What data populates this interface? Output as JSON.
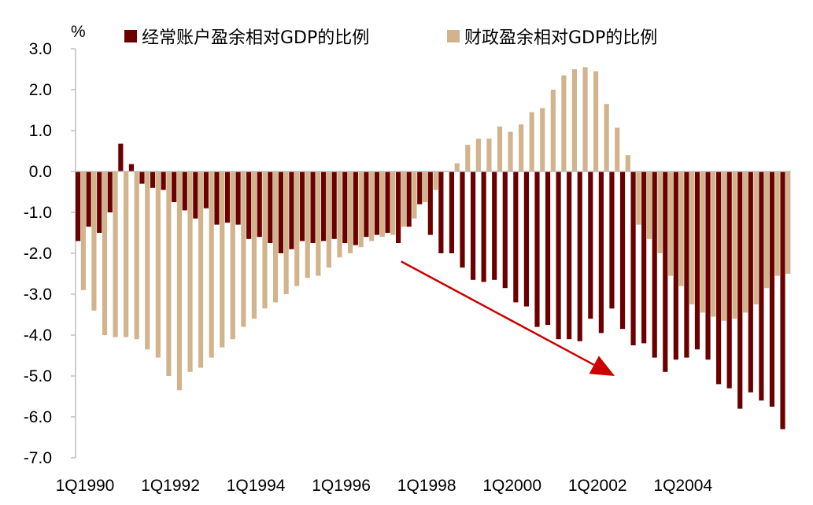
{
  "chart_data": {
    "type": "bar",
    "unit_label": "%",
    "series": [
      {
        "name": "经常账户盈余相对GDP的比例",
        "color": "#6B0000",
        "values": [
          -1.7,
          -1.35,
          -1.5,
          -1.0,
          0.68,
          0.18,
          -0.3,
          -0.4,
          -0.45,
          -0.75,
          -0.95,
          -1.15,
          -0.9,
          -1.3,
          -1.25,
          -1.3,
          -1.65,
          -1.6,
          -1.75,
          -2.0,
          -1.9,
          -1.7,
          -1.75,
          -1.7,
          -1.65,
          -1.75,
          -1.8,
          -1.6,
          -1.55,
          -1.5,
          -1.75,
          -1.35,
          -0.8,
          -1.55,
          -2.0,
          -2.0,
          -2.35,
          -2.65,
          -2.7,
          -2.65,
          -2.85,
          -3.2,
          -3.3,
          -3.8,
          -3.75,
          -4.1,
          -4.1,
          -4.15,
          -3.6,
          -3.95,
          -3.35,
          -3.85,
          -4.25,
          -4.2,
          -4.55,
          -4.9,
          -4.6,
          -4.55,
          -4.35,
          -4.6,
          -5.2,
          -5.3,
          -5.8,
          -5.4,
          -5.6,
          -5.75,
          -6.3
        ]
      },
      {
        "name": "财政盈余相对GDP的比例",
        "color": "#D2B48C",
        "values": [
          -2.9,
          -3.4,
          -4.0,
          -4.05,
          -4.05,
          -4.1,
          -4.35,
          -4.55,
          -5.0,
          -5.35,
          -4.9,
          -4.8,
          -4.55,
          -4.3,
          -4.1,
          -3.8,
          -3.6,
          -3.35,
          -3.2,
          -3.0,
          -2.8,
          -2.6,
          -2.55,
          -2.35,
          -2.1,
          -2.0,
          -1.85,
          -1.7,
          -1.6,
          -1.55,
          -1.35,
          -1.15,
          -0.75,
          -0.45,
          0.0,
          0.2,
          0.65,
          0.8,
          0.8,
          1.1,
          0.97,
          1.15,
          1.45,
          1.55,
          2.0,
          2.35,
          2.5,
          2.55,
          2.45,
          1.65,
          1.07,
          0.4,
          -1.3,
          -1.65,
          -2.0,
          -2.55,
          -2.8,
          -3.25,
          -3.45,
          -3.55,
          -3.65,
          -3.6,
          -3.45,
          -3.25,
          -2.85,
          -2.55,
          -2.5
        ]
      }
    ],
    "ylim": [
      -7.0,
      3.0
    ],
    "y_ticks": [
      "3.0",
      "2.0",
      "1.0",
      "0.0",
      "-1.0",
      "-2.0",
      "-3.0",
      "-4.0",
      "-5.0",
      "-6.0",
      "-7.0"
    ],
    "x_ticks": [
      {
        "index": 0,
        "label": "1Q1990"
      },
      {
        "index": 8,
        "label": "1Q1992"
      },
      {
        "index": 16,
        "label": "1Q1994"
      },
      {
        "index": 24,
        "label": "1Q1996"
      },
      {
        "index": 32,
        "label": "1Q1998"
      },
      {
        "index": 40,
        "label": "1Q2000"
      },
      {
        "index": 48,
        "label": "1Q2002"
      },
      {
        "index": 56,
        "label": "1Q2004"
      }
    ],
    "trend_arrow": {
      "color": "#CC0000",
      "from": {
        "index": 30,
        "value": -2.2
      },
      "to": {
        "index": 50,
        "value": -5.0
      }
    }
  }
}
